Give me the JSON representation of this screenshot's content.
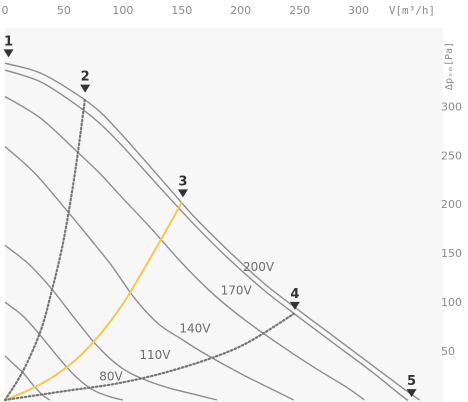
{
  "chart_data": {
    "type": "line",
    "title": "",
    "x_unit_label": "V[m³/h]",
    "y_unit_label": "Δpₛₘ[Pa]",
    "xlim": [
      0,
      370
    ],
    "ylim": [
      0,
      380
    ],
    "x_ticks": [
      {
        "value": 0,
        "label": "0"
      },
      {
        "value": 50,
        "label": "50"
      },
      {
        "value": 100,
        "label": "100"
      },
      {
        "value": 150,
        "label": "150"
      },
      {
        "value": 200,
        "label": "200"
      },
      {
        "value": 250,
        "label": "250"
      },
      {
        "value": 300,
        "label": "300"
      }
    ],
    "y_ticks": [
      {
        "value": 50,
        "label": "50"
      },
      {
        "value": 100,
        "label": "100"
      },
      {
        "value": 150,
        "label": "150"
      },
      {
        "value": 200,
        "label": "200"
      },
      {
        "value": 250,
        "label": "250"
      },
      {
        "value": 300,
        "label": "300"
      }
    ],
    "series": [
      {
        "name": "200V",
        "style": "solid",
        "color": "#8e8e8e",
        "points": [
          [
            0,
            344
          ],
          [
            30,
            334
          ],
          [
            60,
            313
          ],
          [
            80,
            295
          ],
          [
            100,
            270
          ],
          [
            130,
            229
          ],
          [
            160,
            188
          ],
          [
            190,
            152
          ],
          [
            220,
            119
          ],
          [
            250,
            91
          ],
          [
            280,
            64
          ],
          [
            310,
            37
          ],
          [
            340,
            10
          ],
          [
            352,
            0
          ]
        ]
      },
      {
        "name": "170V",
        "style": "solid",
        "color": "#8e8e8e",
        "points": [
          [
            0,
            337
          ],
          [
            30,
            325
          ],
          [
            60,
            302
          ],
          [
            80,
            283
          ],
          [
            100,
            259
          ],
          [
            130,
            219
          ],
          [
            160,
            180
          ],
          [
            190,
            144
          ],
          [
            220,
            112
          ],
          [
            250,
            84
          ],
          [
            280,
            57
          ],
          [
            310,
            30
          ],
          [
            338,
            3
          ],
          [
            342,
            0
          ]
        ]
      },
      {
        "name": "140V",
        "style": "solid",
        "color": "#8e8e8e",
        "points": [
          [
            0,
            310
          ],
          [
            30,
            288
          ],
          [
            60,
            255
          ],
          [
            80,
            232
          ],
          [
            100,
            206
          ],
          [
            125,
            174
          ],
          [
            150,
            140
          ],
          [
            175,
            110
          ],
          [
            200,
            85
          ],
          [
            230,
            59
          ],
          [
            260,
            35
          ],
          [
            290,
            13
          ],
          [
            305,
            0
          ]
        ]
      },
      {
        "name": "110V",
        "style": "solid",
        "color": "#8e8e8e",
        "points": [
          [
            0,
            259
          ],
          [
            25,
            232
          ],
          [
            50,
            197
          ],
          [
            70,
            168
          ],
          [
            90,
            138
          ],
          [
            110,
            104
          ],
          [
            130,
            78
          ],
          [
            150,
            62
          ],
          [
            170,
            47
          ],
          [
            200,
            27
          ],
          [
            230,
            9
          ],
          [
            245,
            0
          ]
        ]
      },
      {
        "name": "80V",
        "style": "solid",
        "color": "#8e8e8e",
        "points": [
          [
            0,
            158
          ],
          [
            20,
            139
          ],
          [
            40,
            113
          ],
          [
            60,
            82
          ],
          [
            80,
            53
          ],
          [
            100,
            32
          ],
          [
            120,
            20
          ],
          [
            140,
            12
          ],
          [
            160,
            6
          ],
          [
            180,
            0
          ]
        ]
      },
      {
        "name": "",
        "style": "solid",
        "color": "#8e8e8e",
        "points": [
          [
            0,
            100
          ],
          [
            15,
            86
          ],
          [
            30,
            66
          ],
          [
            45,
            44
          ],
          [
            60,
            24
          ],
          [
            75,
            10
          ],
          [
            90,
            3
          ],
          [
            100,
            0
          ]
        ]
      },
      {
        "name": "",
        "style": "solid",
        "color": "#8e8e8e",
        "points": [
          [
            0,
            45
          ],
          [
            8,
            36
          ],
          [
            16,
            27
          ],
          [
            24,
            15
          ],
          [
            32,
            5
          ],
          [
            38,
            0
          ]
        ]
      },
      {
        "name": "",
        "style": "dotted",
        "color": "#777777",
        "points": [
          [
            0,
            0
          ],
          [
            15,
            29
          ],
          [
            30,
            70
          ],
          [
            40,
            113
          ],
          [
            50,
            165
          ],
          [
            60,
            237
          ],
          [
            68,
            309
          ]
        ]
      },
      {
        "name": "",
        "style": "solid",
        "color": "#f2c94c",
        "points": [
          [
            0,
            0
          ],
          [
            20,
            10
          ],
          [
            40,
            23
          ],
          [
            60,
            41
          ],
          [
            80,
            66
          ],
          [
            100,
            98
          ],
          [
            120,
            138
          ],
          [
            140,
            180
          ],
          [
            150,
            202
          ]
        ]
      },
      {
        "name": "",
        "style": "dotted",
        "color": "#777777",
        "points": [
          [
            0,
            0
          ],
          [
            50,
            9
          ],
          [
            100,
            18
          ],
          [
            150,
            33
          ],
          [
            200,
            55
          ],
          [
            245,
            88
          ]
        ]
      }
    ],
    "curve_labels": [
      {
        "text": "200V",
        "x": 202,
        "y": 132
      },
      {
        "text": "170V",
        "x": 183,
        "y": 108
      },
      {
        "text": "140V",
        "x": 148,
        "y": 69
      },
      {
        "text": "110V",
        "x": 114,
        "y": 42
      },
      {
        "text": "80V",
        "x": 80,
        "y": 20
      }
    ],
    "operating_points": [
      {
        "label": "1",
        "x": 3,
        "y": 350
      },
      {
        "label": "2",
        "x": 68,
        "y": 314
      },
      {
        "label": "3",
        "x": 151,
        "y": 207
      },
      {
        "label": "4",
        "x": 246,
        "y": 92
      },
      {
        "label": "5",
        "x": 345,
        "y": 3
      }
    ]
  }
}
